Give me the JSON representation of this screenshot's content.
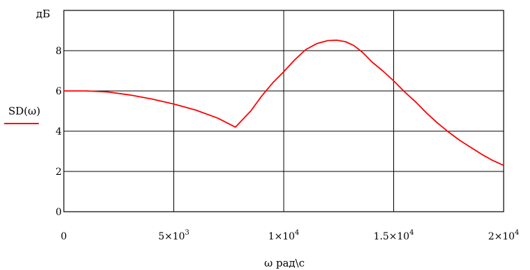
{
  "chart_data": {
    "type": "line",
    "title": "",
    "xlabel": "ω  рад\\с",
    "ylabel": "дБ",
    "xlim": [
      0,
      20000
    ],
    "ylim": [
      0,
      10
    ],
    "grid": true,
    "legend_position": "left",
    "x_ticks": [
      {
        "value": 0,
        "base": "0",
        "exp": ""
      },
      {
        "value": 5000,
        "base": "5×10",
        "exp": "3"
      },
      {
        "value": 10000,
        "base": "1×10",
        "exp": "4"
      },
      {
        "value": 15000,
        "base": "1.5×10",
        "exp": "4"
      },
      {
        "value": 20000,
        "base": "2×10",
        "exp": "4"
      }
    ],
    "y_ticks": [
      "0",
      "2",
      "4",
      "6",
      "8"
    ],
    "y_tick_values": [
      0,
      2,
      4,
      6,
      8
    ],
    "series": [
      {
        "name": "SD(ω)",
        "color": "#ff0000",
        "x": [
          0,
          1000,
          2000,
          3000,
          4000,
          5000,
          6000,
          7000,
          7800,
          8500,
          9000,
          9500,
          10000,
          10500,
          11000,
          11500,
          12000,
          12400,
          12800,
          13200,
          13600,
          14000,
          14500,
          15000,
          15500,
          16000,
          16500,
          17000,
          17500,
          18000,
          18500,
          19000,
          19500,
          20000
        ],
        "y": [
          6.0,
          6.0,
          5.95,
          5.8,
          5.6,
          5.35,
          5.05,
          4.65,
          4.2,
          5.0,
          5.75,
          6.4,
          6.95,
          7.55,
          8.05,
          8.35,
          8.5,
          8.52,
          8.45,
          8.25,
          7.9,
          7.45,
          7.0,
          6.5,
          5.95,
          5.45,
          4.9,
          4.4,
          3.95,
          3.55,
          3.2,
          2.85,
          2.55,
          2.3
        ]
      }
    ]
  }
}
